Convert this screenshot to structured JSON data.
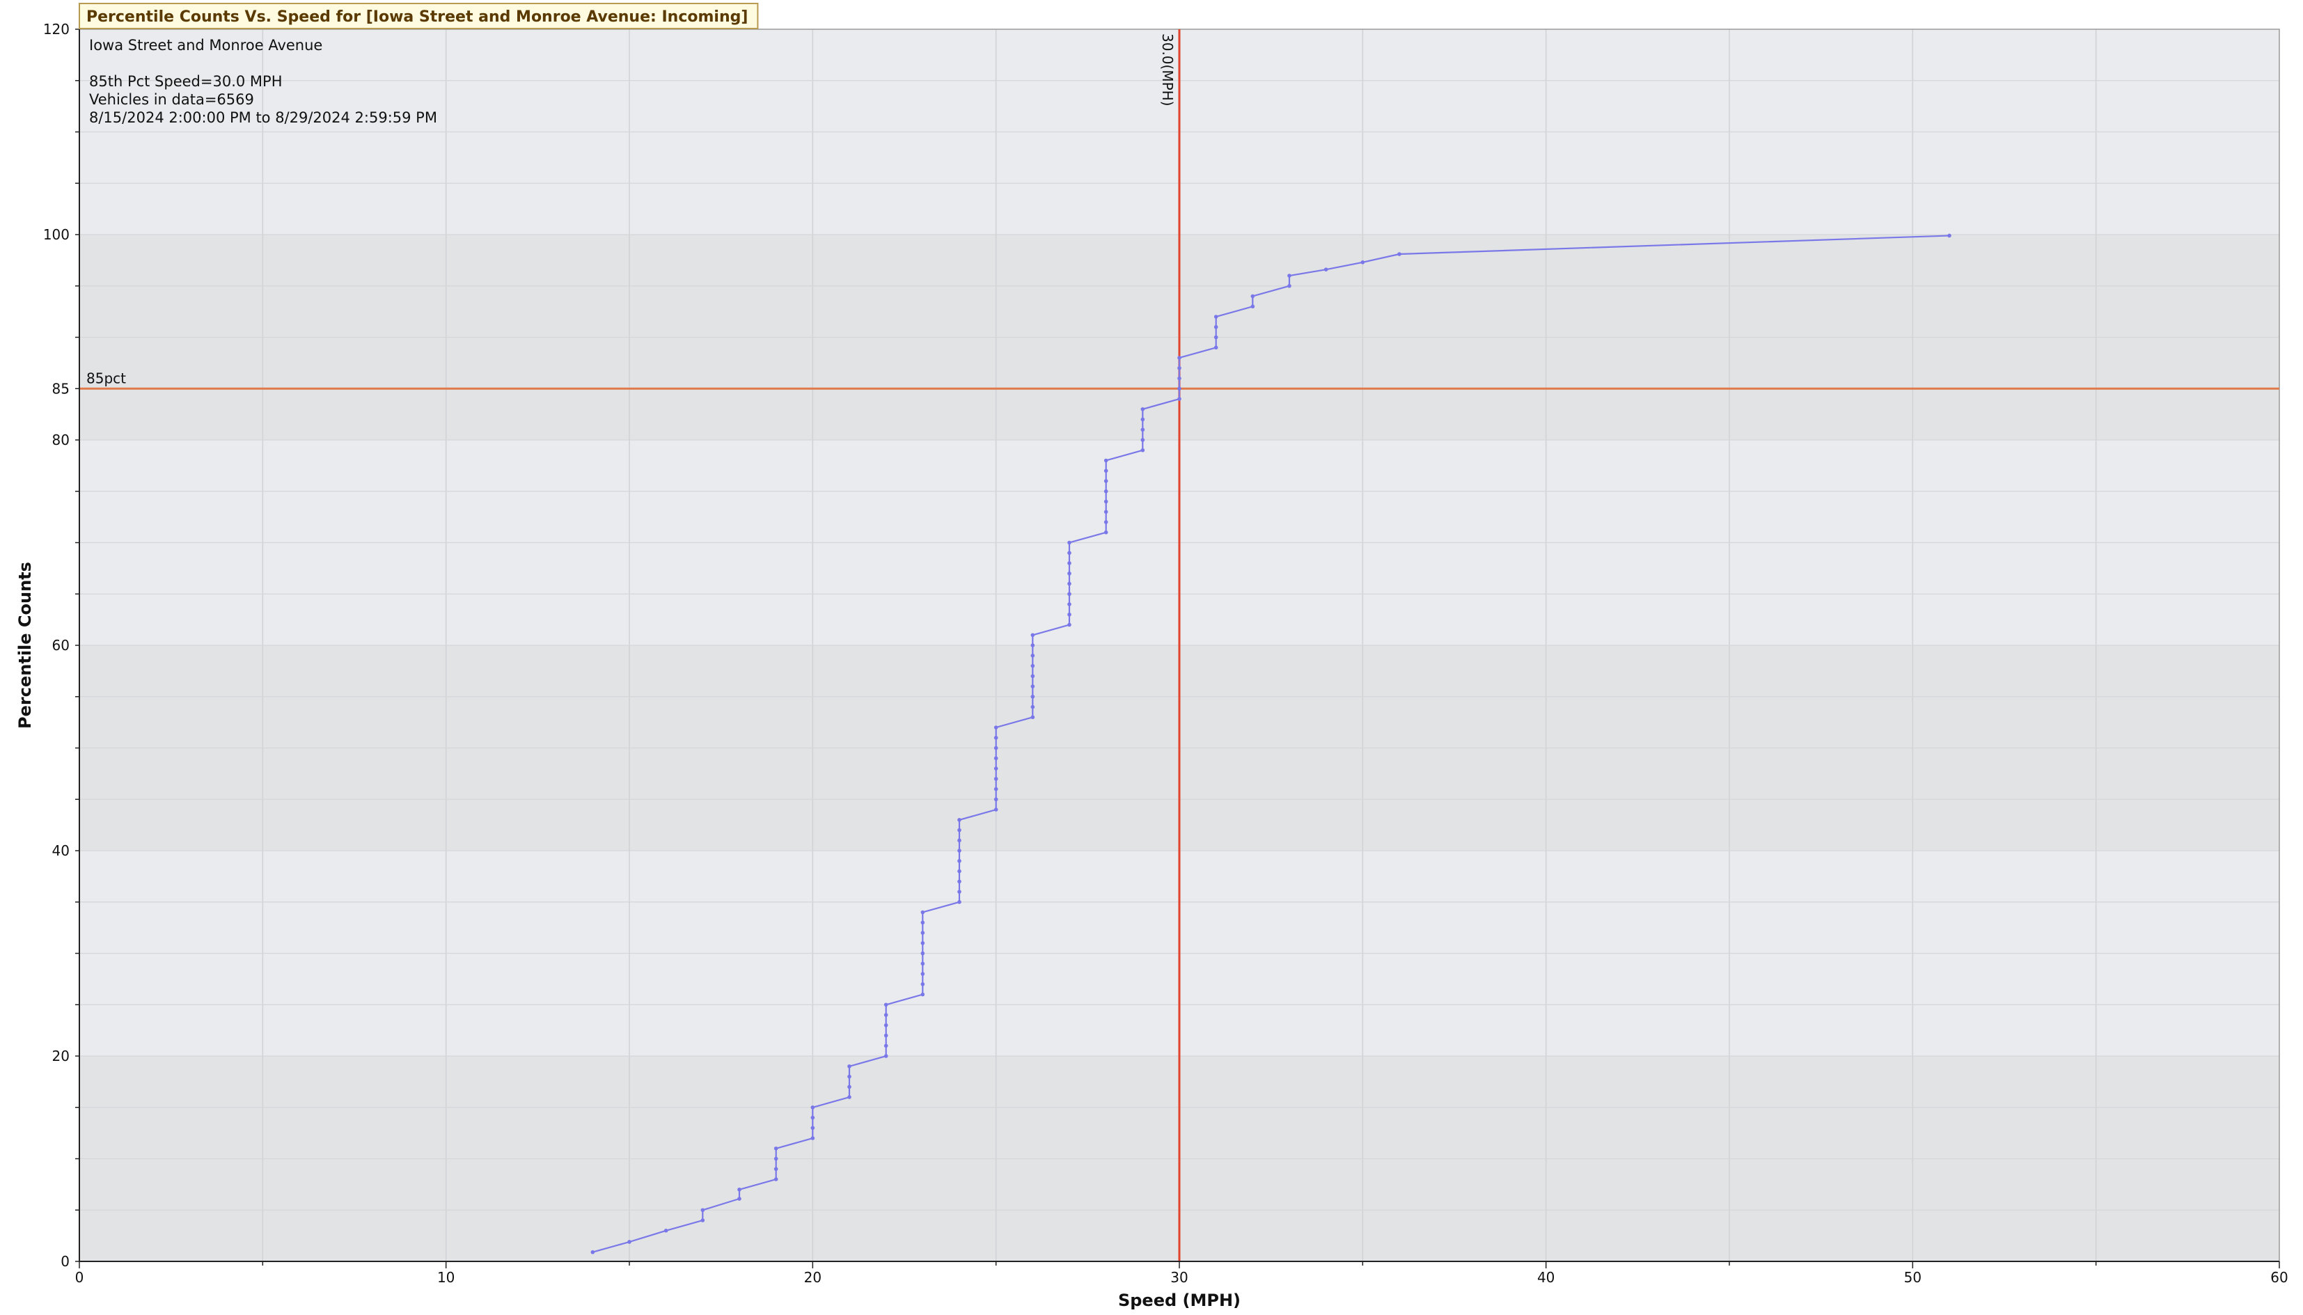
{
  "chart_data": {
    "type": "line",
    "title": "Percentile Counts Vs. Speed for [Iowa Street and Monroe Avenue: Incoming]",
    "xlabel": "Speed (MPH)",
    "ylabel": "Percentile Counts",
    "xlim": [
      0,
      60
    ],
    "ylim": [
      0,
      120
    ],
    "x_ticks": [
      0,
      10,
      20,
      30,
      40,
      50,
      60
    ],
    "y_ticks": [
      0,
      20,
      40,
      60,
      80,
      85,
      100,
      120
    ],
    "grid": true,
    "info_lines": [
      "Iowa Street and Monroe Avenue",
      "",
      "85th Pct Speed=30.0 MPH",
      "Vehicles in data=6569",
      "8/15/2024 2:00:00 PM to 8/29/2024 2:59:59 PM"
    ],
    "reference_lines": {
      "vertical": {
        "x": 30,
        "label": "30.0(MPH)",
        "color": "#e0442c"
      },
      "horizontal": {
        "y": 85,
        "label": "85pct",
        "color": "#e07a4a"
      }
    },
    "series": [
      {
        "color": "#7a78e8",
        "points": [
          [
            14,
            0.9
          ],
          [
            15,
            1.9
          ],
          [
            16,
            3.0
          ],
          [
            17,
            4.0
          ],
          [
            17,
            5.0
          ],
          [
            18,
            6.1
          ],
          [
            18,
            7.0
          ],
          [
            19,
            8.0
          ],
          [
            19,
            9.0
          ],
          [
            19,
            10.0
          ],
          [
            19,
            11.0
          ],
          [
            20,
            12.0
          ],
          [
            20,
            13.0
          ],
          [
            20,
            14.0
          ],
          [
            20,
            15.0
          ],
          [
            21,
            16.0
          ],
          [
            21,
            17.0
          ],
          [
            21,
            18.0
          ],
          [
            21,
            19.0
          ],
          [
            22,
            20.0
          ],
          [
            22,
            21.0
          ],
          [
            22,
            22.0
          ],
          [
            22,
            23.0
          ],
          [
            22,
            24.0
          ],
          [
            22,
            25.0
          ],
          [
            23,
            26.0
          ],
          [
            23,
            27.0
          ],
          [
            23,
            28.0
          ],
          [
            23,
            29.0
          ],
          [
            23,
            30.0
          ],
          [
            23,
            31.0
          ],
          [
            23,
            32.0
          ],
          [
            23,
            33.0
          ],
          [
            23,
            34.0
          ],
          [
            24,
            35.0
          ],
          [
            24,
            36.0
          ],
          [
            24,
            37.0
          ],
          [
            24,
            38.0
          ],
          [
            24,
            39.0
          ],
          [
            24,
            40.0
          ],
          [
            24,
            41.0
          ],
          [
            24,
            42.0
          ],
          [
            24,
            43.0
          ],
          [
            25,
            44.0
          ],
          [
            25,
            45.0
          ],
          [
            25,
            46.0
          ],
          [
            25,
            47.0
          ],
          [
            25,
            48.0
          ],
          [
            25,
            49.0
          ],
          [
            25,
            50.0
          ],
          [
            25,
            51.0
          ],
          [
            25,
            52.0
          ],
          [
            26,
            53.0
          ],
          [
            26,
            54.0
          ],
          [
            26,
            55.0
          ],
          [
            26,
            56.0
          ],
          [
            26,
            57.0
          ],
          [
            26,
            58.0
          ],
          [
            26,
            59.0
          ],
          [
            26,
            60.0
          ],
          [
            26,
            61.0
          ],
          [
            27,
            62.0
          ],
          [
            27,
            63.0
          ],
          [
            27,
            64.0
          ],
          [
            27,
            65.0
          ],
          [
            27,
            66.0
          ],
          [
            27,
            67.0
          ],
          [
            27,
            68.0
          ],
          [
            27,
            69.0
          ],
          [
            27,
            70.0
          ],
          [
            28,
            71.0
          ],
          [
            28,
            72.0
          ],
          [
            28,
            73.0
          ],
          [
            28,
            74.0
          ],
          [
            28,
            75.0
          ],
          [
            28,
            76.0
          ],
          [
            28,
            77.0
          ],
          [
            28,
            78.0
          ],
          [
            29,
            79.0
          ],
          [
            29,
            80.0
          ],
          [
            29,
            81.0
          ],
          [
            29,
            82.0
          ],
          [
            29,
            83.0
          ],
          [
            30,
            84.0
          ],
          [
            30,
            85.0
          ],
          [
            30,
            86.0
          ],
          [
            30,
            87.0
          ],
          [
            30,
            88.0
          ],
          [
            31,
            89.0
          ],
          [
            31,
            90.0
          ],
          [
            31,
            91.0
          ],
          [
            31,
            92.0
          ],
          [
            32,
            93.0
          ],
          [
            32,
            94.0
          ],
          [
            33,
            95.0
          ],
          [
            33,
            96.0
          ],
          [
            34,
            96.6
          ],
          [
            35,
            97.3
          ],
          [
            36,
            98.1
          ],
          [
            51,
            99.9
          ]
        ]
      }
    ]
  }
}
